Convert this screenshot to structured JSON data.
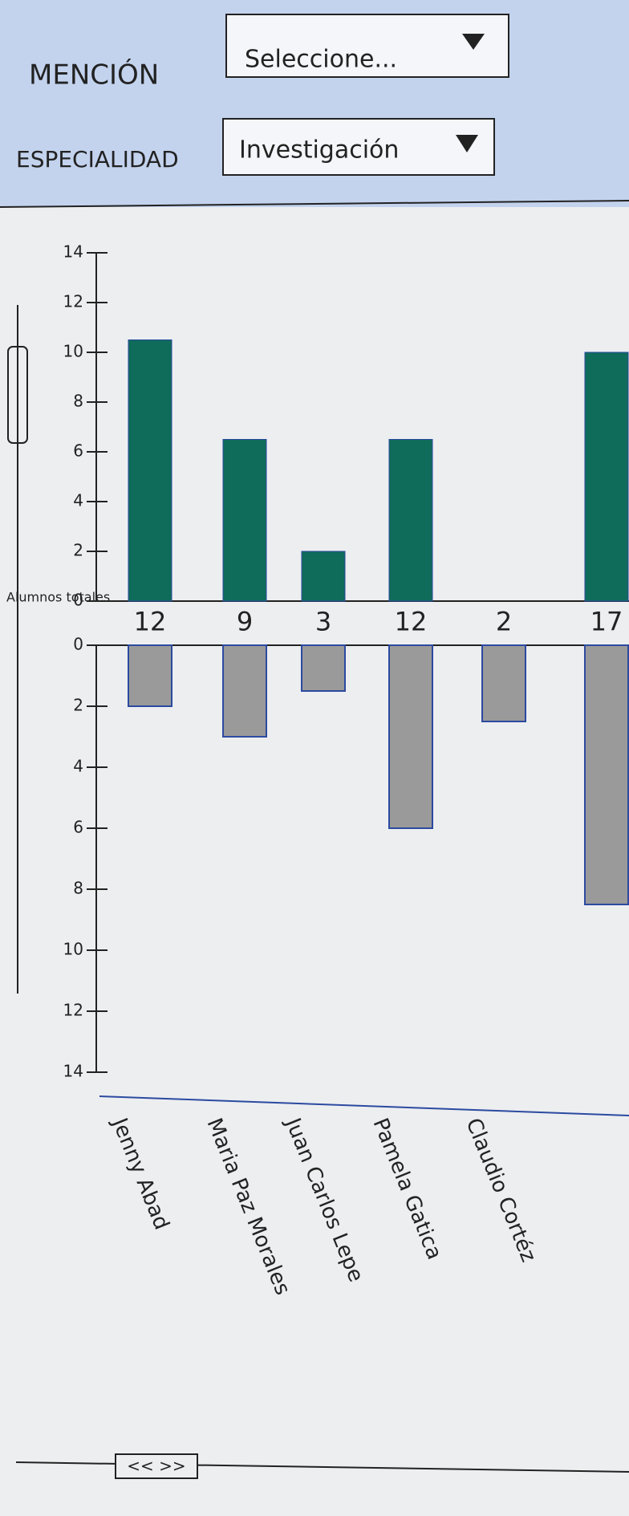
{
  "filters": [
    {
      "label": "MENCIÓN",
      "value": "Seleccione..."
    },
    {
      "label": "ESPECIALIDAD",
      "value": "Investigación"
    }
  ],
  "scrollbar_label": "<< >>",
  "chart_data": {
    "type": "bar",
    "y_label": "Alumnos totales",
    "categories": [
      "Jenny Abad",
      "Maria Paz Morales",
      "Juan Carlos Lepe",
      "Pamela Gatica",
      "Claudio Cortéz",
      null
    ],
    "totals": [
      12,
      9,
      3,
      12,
      2,
      17
    ],
    "series": [
      {
        "color": "#0f6b5a",
        "values": [
          10.5,
          6.5,
          2,
          6.5,
          0,
          10
        ]
      },
      {
        "color": "#9a9a9a",
        "values": [
          2,
          3,
          1.5,
          6,
          2.5,
          8.5
        ],
        "axis": "y2"
      }
    ],
    "ylim": [
      0,
      14
    ],
    "yticks": [
      0,
      2,
      4,
      6,
      8,
      10,
      12,
      14
    ],
    "y2lim": [
      0,
      14
    ],
    "y2ticks": [
      0,
      2,
      4,
      6,
      8,
      10,
      12,
      14
    ]
  }
}
